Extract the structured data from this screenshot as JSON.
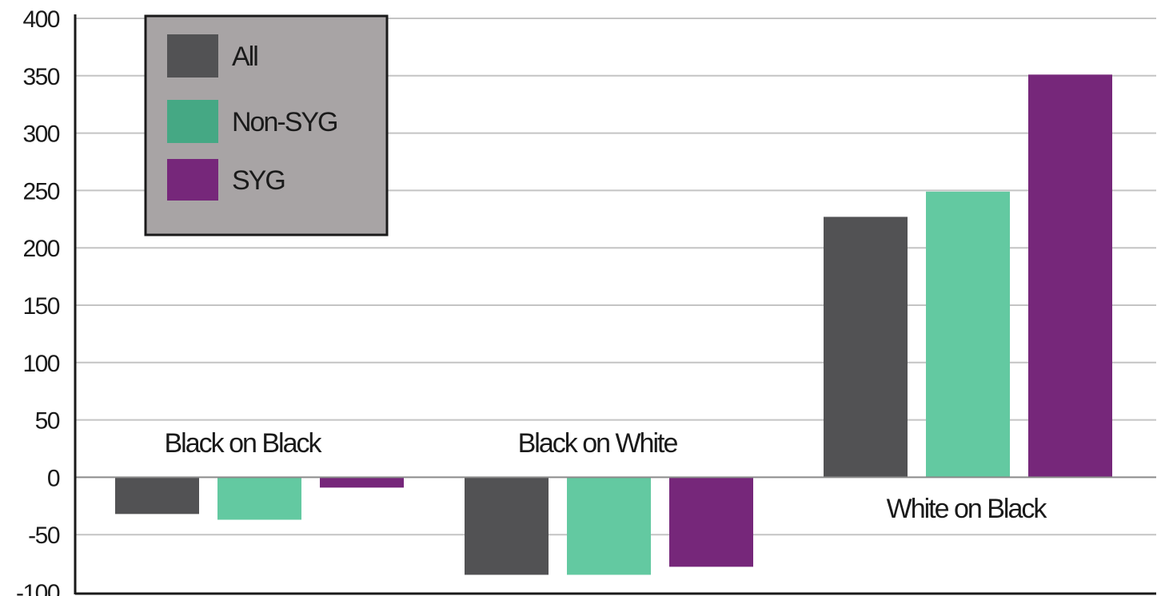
{
  "chart_data": {
    "type": "bar",
    "title": "",
    "xlabel": "",
    "ylabel": "",
    "ylim": [
      -100,
      400
    ],
    "yticks": [
      400,
      350,
      300,
      250,
      200,
      150,
      100,
      50,
      0,
      -50,
      -100
    ],
    "categories": [
      "Black on Black",
      "Black on White",
      "White on Black"
    ],
    "series": [
      {
        "name": "All",
        "color": "#525254",
        "values": [
          -32,
          -85,
          227
        ]
      },
      {
        "name": "Non-SYG",
        "color": "#63c9a1",
        "values": [
          -37,
          -85,
          249
        ]
      },
      {
        "name": "SYG",
        "color": "#76277a",
        "values": [
          -9,
          -78,
          351
        ]
      }
    ],
    "legend": {
      "position": "top-left",
      "background": "#a8a4a5",
      "entries": [
        {
          "label": "All",
          "color": "#525254"
        },
        {
          "label": "Non-SYG",
          "color": "#45a884"
        },
        {
          "label": "SYG",
          "color": "#76277a"
        }
      ]
    },
    "grid": true,
    "grid_color": "#c4c4c4"
  }
}
